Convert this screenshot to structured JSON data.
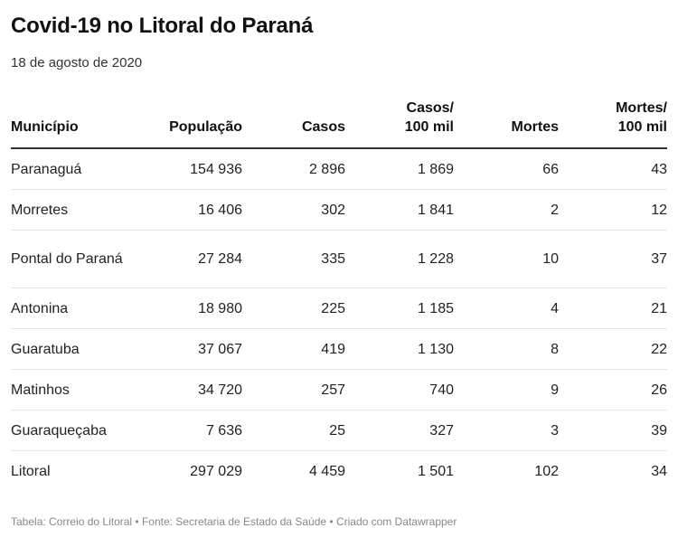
{
  "title": "Covid-19 no Litoral do Paraná",
  "subtitle": "18 de agosto de 2020",
  "table": {
    "headers": [
      {
        "line1": "",
        "line2": "Município"
      },
      {
        "line1": "",
        "line2": "População"
      },
      {
        "line1": "",
        "line2": "Casos"
      },
      {
        "line1": "Casos/",
        "line2": "100 mil"
      },
      {
        "line1": "",
        "line2": "Mortes"
      },
      {
        "line1": "Mortes/",
        "line2": "100 mil"
      }
    ],
    "rows": [
      {
        "municipio": "Paranaguá",
        "populacao": "154 936",
        "casos": "2 896",
        "casos_100mil": "1 869",
        "mortes": "66",
        "mortes_100mil": "43"
      },
      {
        "municipio": "Morretes",
        "populacao": "16 406",
        "casos": "302",
        "casos_100mil": "1 841",
        "mortes": "2",
        "mortes_100mil": "12"
      },
      {
        "municipio": "Pontal do Paraná",
        "populacao": "27 284",
        "casos": "335",
        "casos_100mil": "1 228",
        "mortes": "10",
        "mortes_100mil": "37"
      },
      {
        "municipio": "Antonina",
        "populacao": "18 980",
        "casos": "225",
        "casos_100mil": "1 185",
        "mortes": "4",
        "mortes_100mil": "21"
      },
      {
        "municipio": "Guaratuba",
        "populacao": "37 067",
        "casos": "419",
        "casos_100mil": "1 130",
        "mortes": "8",
        "mortes_100mil": "22"
      },
      {
        "municipio": "Matinhos",
        "populacao": "34 720",
        "casos": "257",
        "casos_100mil": "740",
        "mortes": "9",
        "mortes_100mil": "26"
      },
      {
        "municipio": "Guaraqueçaba",
        "populacao": "7 636",
        "casos": "25",
        "casos_100mil": "327",
        "mortes": "3",
        "mortes_100mil": "39"
      },
      {
        "municipio": "Litoral",
        "populacao": "297 029",
        "casos": "4 459",
        "casos_100mil": "1 501",
        "mortes": "102",
        "mortes_100mil": "34"
      }
    ]
  },
  "footer": "Tabela: Correio do Litoral • Fonte: Secretaria de Estado da Saúde • Criado com Datawrapper"
}
